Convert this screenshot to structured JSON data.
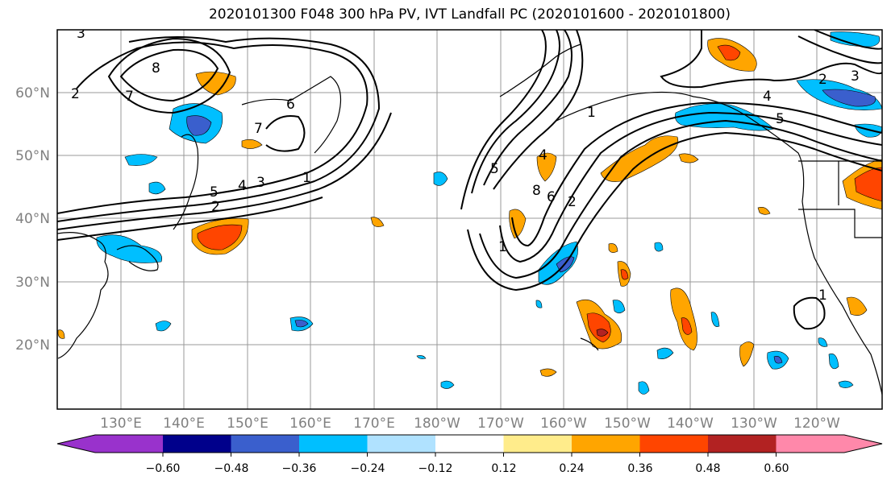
{
  "title": "2020101300 F048 300 hPa PV, IVT Landfall PC (2020101600 - 2020101800)",
  "lat_labels": [
    "60°N",
    "50°N",
    "40°N",
    "30°N",
    "20°N"
  ],
  "lon_labels": [
    "130°E",
    "140°E",
    "150°E",
    "160°E",
    "170°E",
    "180°W",
    "170°W",
    "160°W",
    "150°W",
    "140°W",
    "130°W",
    "120°W"
  ],
  "colorbar": {
    "ticks": [
      "−0.60",
      "−0.48",
      "−0.36",
      "−0.24",
      "−0.12",
      "0.12",
      "0.24",
      "0.36",
      "0.48",
      "0.60"
    ],
    "colors": [
      "#9932cc",
      "#00008b",
      "#3a5fcd",
      "#00bfff",
      "#b0e2ff",
      "#ffffff",
      "#ffec8b",
      "#ffa500",
      "#ff4500",
      "#b22222",
      "#ff88aa"
    ]
  },
  "contour_labels": [
    "3",
    "2",
    "7",
    "8",
    "6",
    "7",
    "1",
    "3",
    "4",
    "5",
    "2",
    "5",
    "1",
    "8",
    "6",
    "2",
    "4",
    "2",
    "3",
    "4",
    "5",
    "1",
    "1"
  ]
}
